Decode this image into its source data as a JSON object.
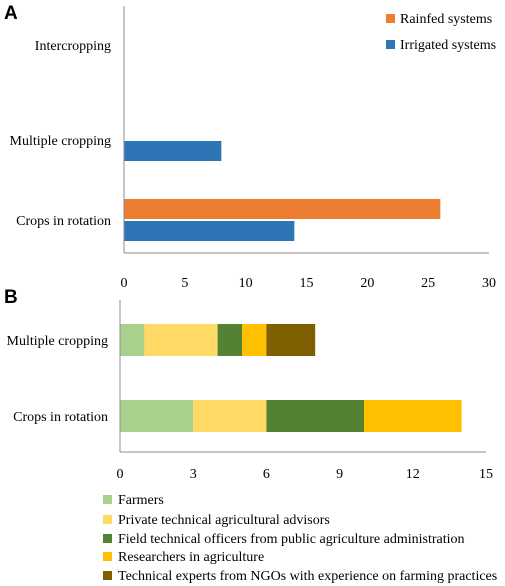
{
  "chart_data": [
    {
      "type": "bar",
      "orientation": "horizontal",
      "panel_label": "A",
      "categories": [
        "Intercropping",
        "Multiple cropping",
        "Crops in rotation"
      ],
      "series": [
        {
          "name": "Rainfed systems",
          "color": "#ed7d31",
          "values": [
            0,
            0,
            26
          ]
        },
        {
          "name": "Irrigated systems",
          "color": "#2e75b6",
          "values": [
            0,
            8,
            14
          ]
        }
      ],
      "xlim": [
        0,
        30
      ],
      "xticks": [
        0,
        5,
        10,
        15,
        20,
        25,
        30
      ],
      "grid": false,
      "legend_position": "top-right"
    },
    {
      "type": "bar",
      "orientation": "horizontal",
      "stacked": true,
      "panel_label": "B",
      "categories": [
        "Multiple cropping",
        "Crops in rotation"
      ],
      "series": [
        {
          "name": "Farmers",
          "color": "#a9d18e",
          "values": [
            1,
            3
          ]
        },
        {
          "name": "Private technical agricultural advisors",
          "color": "#ffd966",
          "values": [
            3,
            3
          ]
        },
        {
          "name": "Field technical officers from public agriculture administration",
          "color": "#548235",
          "values": [
            1,
            4
          ]
        },
        {
          "name": "Researchers in agriculture",
          "color": "#ffc000",
          "values": [
            1,
            4
          ]
        },
        {
          "name": "Technical experts from NGOs with experience on farming practices",
          "color": "#7f6000",
          "values": [
            2,
            0
          ]
        }
      ],
      "xlim": [
        0,
        15
      ],
      "xticks": [
        0,
        3,
        6,
        9,
        12,
        15
      ],
      "grid": false,
      "legend_position": "bottom"
    }
  ]
}
